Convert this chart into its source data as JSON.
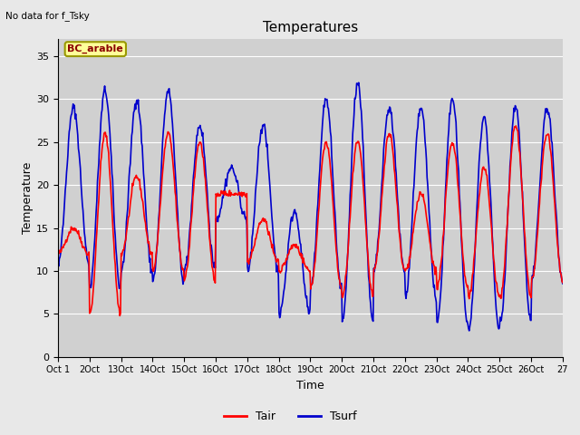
{
  "title": "Temperatures",
  "xlabel": "Time",
  "ylabel": "Temperature",
  "top_left_text": "No data for f_Tsky",
  "legend_label": "BC_arable",
  "yticks": [
    0,
    5,
    10,
    15,
    20,
    25,
    30,
    35
  ],
  "ylim": [
    0,
    37
  ],
  "xtick_labels": [
    "Oct 1",
    "2Oct",
    "13Oct",
    "14Oct",
    "15Oct",
    "16Oct",
    "17Oct",
    "18Oct",
    "19Oct",
    "20Oct",
    "21Oct",
    "22Oct",
    "23Oct",
    "24Oct",
    "25Oct",
    "26Oct",
    "27"
  ],
  "tair_color": "#ff0000",
  "tsurf_color": "#0000cc",
  "fig_facecolor": "#e8e8e8",
  "plot_bg_color": "#d0d0d0",
  "line_width": 1.2,
  "n_days": 16,
  "points_per_day": 48,
  "day_peaks_air": [
    15,
    26,
    21,
    26,
    25,
    19,
    16,
    13,
    25,
    25,
    26,
    19,
    25,
    22,
    27,
    26
  ],
  "day_troughs_air": [
    12,
    5,
    12,
    10,
    9,
    19,
    11,
    10,
    8,
    7,
    10,
    10,
    8,
    7,
    7,
    9
  ],
  "day_peaks_surf": [
    29,
    31,
    30,
    31,
    27,
    22,
    27,
    17,
    30,
    32,
    29,
    29,
    30,
    28,
    29,
    29
  ],
  "day_troughs_surf": [
    11,
    8,
    10,
    9,
    10,
    16,
    10,
    5,
    8,
    4,
    10,
    7,
    4,
    3,
    4,
    9
  ]
}
